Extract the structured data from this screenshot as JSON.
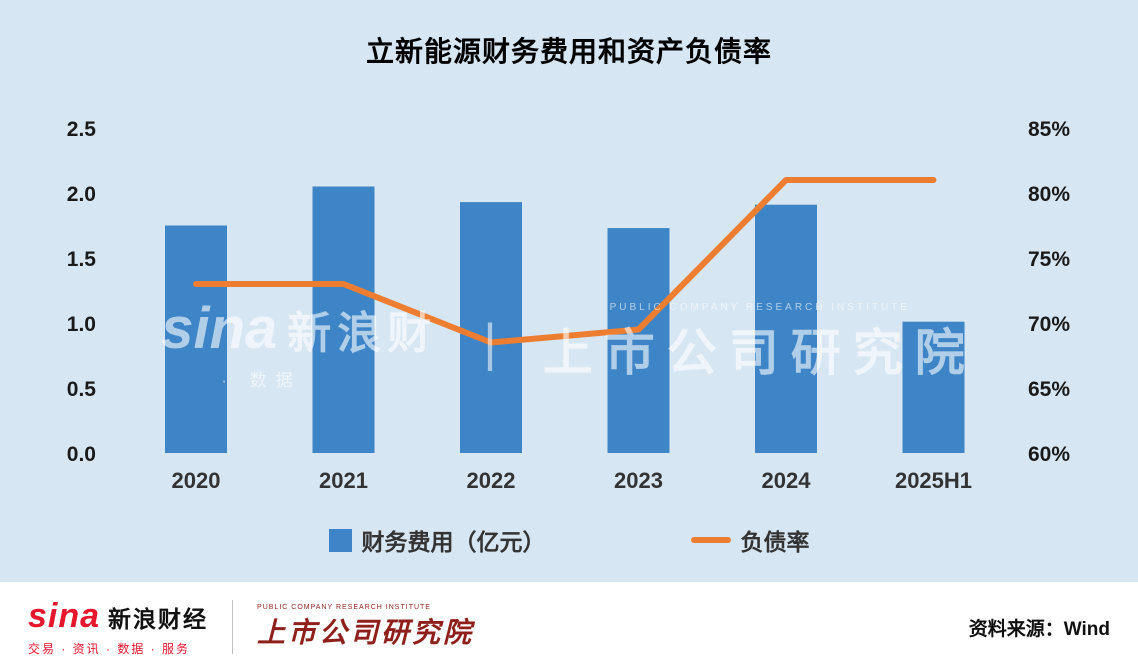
{
  "title": "立新能源财务费用和资产负债率",
  "chart_data": {
    "type": "bar+line",
    "title": "立新能源财务费用和资产负债率",
    "categories": [
      "2020",
      "2021",
      "2022",
      "2023",
      "2024",
      "2025H1"
    ],
    "series": [
      {
        "name": "财务费用（亿元）",
        "type": "bar",
        "axis": "left",
        "color": "#3d85c6",
        "values": [
          1.75,
          2.05,
          1.93,
          1.73,
          1.91,
          1.01
        ]
      },
      {
        "name": "负债率",
        "type": "line",
        "axis": "right",
        "color": "#ed7d31",
        "values": [
          73,
          73,
          68.5,
          69.5,
          81,
          81
        ]
      }
    ],
    "left_axis": {
      "min": 0,
      "max": 2.5,
      "ticks": [
        "0.0",
        "0.5",
        "1.0",
        "1.5",
        "2.0",
        "2.5"
      ]
    },
    "right_axis": {
      "min": 60,
      "max": 85,
      "ticks": [
        "60%",
        "65%",
        "70%",
        "75%",
        "80%",
        "85%"
      ]
    },
    "grid": false,
    "legend_position": "bottom"
  },
  "watermark": {
    "sina": "sina",
    "cn": "新浪财",
    "sub": "· 数据",
    "divider": "|",
    "right_sub": "PUBLIC COMPANY RESEARCH INSTITUTE",
    "right_main": "上市公司研究院"
  },
  "footer": {
    "sina_logo": "sina",
    "sina_name": "新浪财经",
    "sina_tagline": "交易 · 资讯 · 数据 · 服务",
    "institute_sub": "PUBLIC COMPANY RESEARCH INSTITUTE",
    "institute_name": "上市公司研究院",
    "source": "资料来源：Wind"
  },
  "colors": {
    "background": "#d7e6f3",
    "bar_blue": "#3d85c6",
    "line_orange": "#ed7d31",
    "sina_red": "#e6162d",
    "institute_red": "#8e1f1b"
  }
}
